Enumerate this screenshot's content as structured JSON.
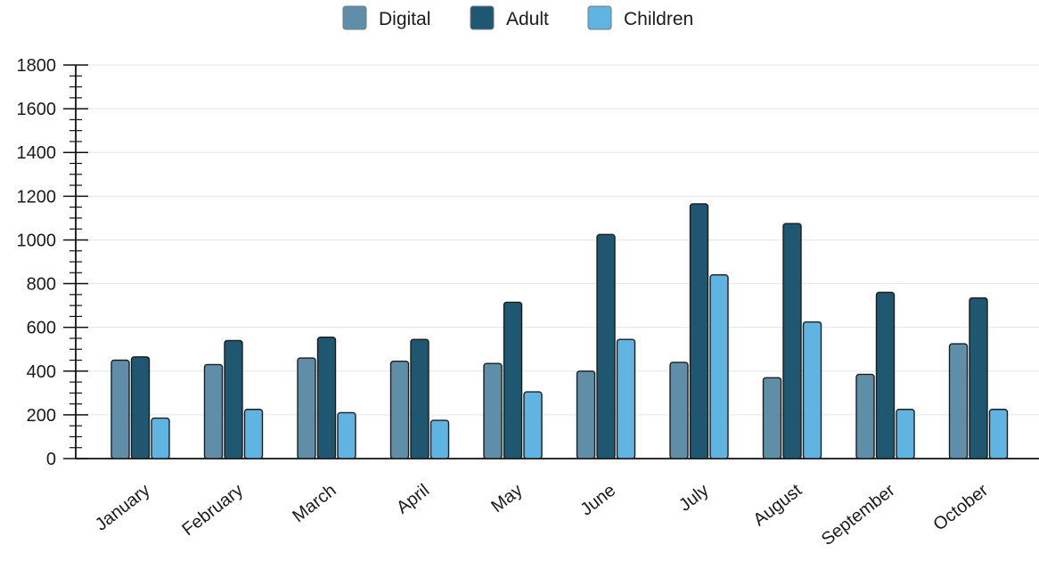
{
  "chart_data": {
    "type": "bar",
    "title": "",
    "xlabel": "",
    "ylabel": "",
    "ylim": [
      0,
      1800
    ],
    "yticks": [
      0,
      200,
      400,
      600,
      800,
      1000,
      1200,
      1400,
      1600,
      1800
    ],
    "grid": true,
    "legend_position": "top-center",
    "categories": [
      "January",
      "February",
      "March",
      "April",
      "May",
      "June",
      "July",
      "August",
      "September",
      "October"
    ],
    "series": [
      {
        "name": "Digital",
        "color": "#5f8fa8",
        "values": [
          450,
          430,
          460,
          445,
          435,
          400,
          440,
          370,
          385,
          525
        ]
      },
      {
        "name": "Adult",
        "color": "#1f5670",
        "values": [
          465,
          540,
          555,
          545,
          715,
          1025,
          1165,
          1075,
          760,
          735
        ]
      },
      {
        "name": "Children",
        "color": "#5fb4e2",
        "values": [
          185,
          225,
          210,
          175,
          305,
          545,
          840,
          625,
          225,
          225
        ]
      }
    ]
  }
}
